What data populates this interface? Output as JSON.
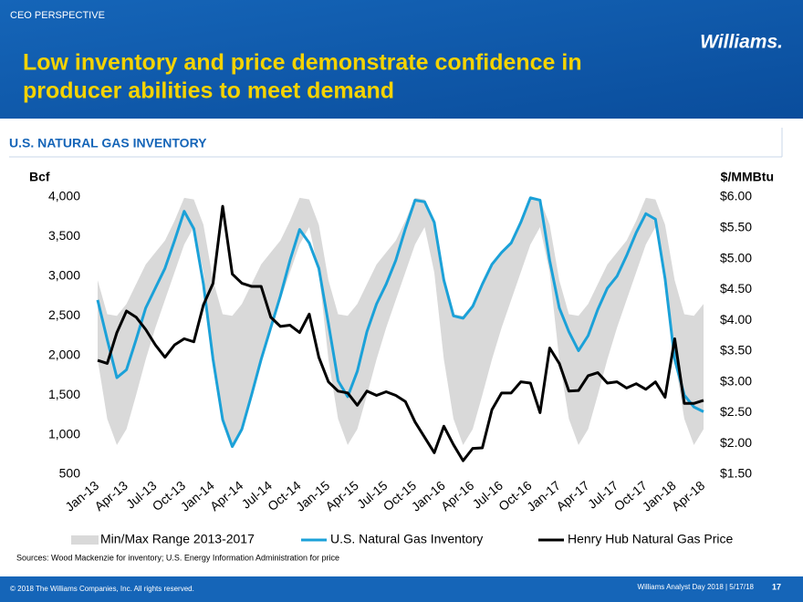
{
  "header": {
    "section": "CEO PERSPECTIVE",
    "title_lines": [
      "Low inventory and price demonstrate confidence in",
      "producer abilities to meet demand"
    ],
    "logo": "Williams."
  },
  "chart_data": {
    "type": "line",
    "title": "U.S. NATURAL GAS INVENTORY",
    "ylabel": "Bcf",
    "y2label": "$/MMBtu",
    "categories": [
      "Jan-13",
      null,
      null,
      "Apr-13",
      null,
      null,
      "Jul-13",
      null,
      null,
      "Oct-13",
      null,
      null,
      "Jan-14",
      null,
      null,
      "Apr-14",
      null,
      null,
      "Jul-14",
      null,
      null,
      "Oct-14",
      null,
      null,
      "Jan-15",
      null,
      null,
      "Apr-15",
      null,
      null,
      "Jul-15",
      null,
      null,
      "Oct-15",
      null,
      null,
      "Jan-16",
      null,
      null,
      "Apr-16",
      null,
      null,
      "Jul-16",
      null,
      null,
      "Oct-16",
      null,
      null,
      "Jan-17",
      null,
      null,
      "Apr-17",
      null,
      null,
      "Jul-17",
      null,
      null,
      "Oct-17",
      null,
      null,
      "Jan-18",
      null,
      null,
      "Apr-18"
    ],
    "ylim": [
      500,
      4000
    ],
    "yticks": [
      500,
      {
        "value": 1000,
        "label": "1,000"
      },
      {
        "value": 1500,
        "label": "1,500"
      },
      {
        "value": 2000,
        "label": "2,000"
      },
      {
        "value": 2500,
        "label": "2,500"
      },
      {
        "value": 3000,
        "label": "3,000"
      },
      {
        "value": 3500,
        "label": "3,500"
      },
      {
        "value": 4000,
        "label": "4,000"
      }
    ],
    "y2lim": [
      1.5,
      6
    ],
    "y2ticks": [
      {
        "value": 1.5,
        "label": "$1.50"
      },
      {
        "value": 2,
        "label": "$2.00"
      },
      {
        "value": 2.5,
        "label": "$2.50"
      },
      {
        "value": 3,
        "label": "$3.00"
      },
      {
        "value": 3.5,
        "label": "$3.50"
      },
      {
        "value": 4,
        "label": "$4.00"
      },
      {
        "value": 4.5,
        "label": "$4.50"
      },
      {
        "value": 5,
        "label": "$5.00"
      },
      {
        "value": 5.5,
        "label": "$5.50"
      },
      {
        "value": 6,
        "label": "$6.00"
      }
    ],
    "series": [
      {
        "name": "Min/Max Range 2013-2017",
        "type": "range",
        "color": "#d9d9d9",
        "max": [
          2950,
          2520,
          2500,
          2650,
          2900,
          3150,
          3300,
          3450,
          3700,
          3990,
          3970,
          3650,
          2950,
          2520,
          2500,
          2650,
          2900,
          3150,
          3300,
          3450,
          3700,
          3990,
          3970,
          3650,
          2950,
          2520,
          2500,
          2650,
          2900,
          3150,
          3300,
          3450,
          3700,
          3990,
          3970,
          3650,
          2950,
          2520,
          2500,
          2650,
          2900,
          3150,
          3300,
          3450,
          3700,
          3990,
          3970,
          3650,
          2950,
          2520,
          2500,
          2650,
          2900,
          3150,
          3300,
          3450,
          3700,
          3990,
          3970,
          3650,
          2950,
          2520,
          2500,
          2650
        ],
        "min": [
          1950,
          1200,
          870,
          1070,
          1500,
          1950,
          2350,
          2700,
          3050,
          3400,
          3620,
          3050,
          1950,
          1200,
          870,
          1070,
          1500,
          1950,
          2350,
          2700,
          3050,
          3400,
          3620,
          3050,
          1950,
          1200,
          870,
          1070,
          1500,
          1950,
          2350,
          2700,
          3050,
          3400,
          3620,
          3050,
          1950,
          1200,
          870,
          1070,
          1500,
          1950,
          2350,
          2700,
          3050,
          3400,
          3620,
          3050,
          1950,
          1200,
          870,
          1070,
          1500,
          1950,
          2350,
          2700,
          3050,
          3400,
          3620,
          3050,
          1950,
          1200,
          870,
          1070
        ]
      },
      {
        "name": "U.S. Natural Gas Inventory",
        "color": "#1ba1d8",
        "values": [
          2700,
          2200,
          1720,
          1820,
          2200,
          2600,
          2850,
          3100,
          3450,
          3820,
          3600,
          2900,
          1950,
          1190,
          850,
          1070,
          1500,
          1950,
          2350,
          2750,
          3200,
          3590,
          3420,
          3100,
          2400,
          1680,
          1480,
          1800,
          2300,
          2650,
          2900,
          3200,
          3600,
          3960,
          3940,
          3680,
          2950,
          2500,
          2470,
          2620,
          2900,
          3150,
          3300,
          3420,
          3680,
          3990,
          3960,
          3200,
          2600,
          2300,
          2060,
          2250,
          2580,
          2850,
          3000,
          3260,
          3550,
          3790,
          3720,
          2970,
          1950,
          1500,
          1350,
          1290
        ]
      },
      {
        "name": "Henry Hub Natural Gas Price",
        "color": "#000000",
        "axis": "y2",
        "values": [
          3.35,
          3.3,
          3.8,
          4.15,
          4.05,
          3.85,
          3.6,
          3.4,
          3.6,
          3.7,
          3.65,
          4.25,
          4.6,
          5.85,
          4.75,
          4.6,
          4.55,
          4.55,
          4.05,
          3.9,
          3.92,
          3.8,
          4.1,
          3.4,
          3.0,
          2.85,
          2.82,
          2.62,
          2.85,
          2.78,
          2.84,
          2.78,
          2.68,
          2.35,
          2.1,
          1.85,
          2.28,
          1.98,
          1.72,
          1.92,
          1.93,
          2.55,
          2.82,
          2.82,
          3.0,
          2.98,
          2.5,
          3.55,
          3.3,
          2.85,
          2.86,
          3.1,
          3.15,
          2.98,
          3.0,
          2.9,
          2.97,
          2.88,
          3.0,
          2.75,
          3.7,
          2.65,
          2.65,
          2.7
        ]
      }
    ]
  },
  "sources": "Sources: Wood Mackenzie for inventory; U.S. Energy Information Administration for price",
  "footer": {
    "copyright": "© 2018 The Williams Companies, Inc. All rights reserved.",
    "event": "Williams Analyst Day 2018  |  5/17/18",
    "page": "17"
  }
}
